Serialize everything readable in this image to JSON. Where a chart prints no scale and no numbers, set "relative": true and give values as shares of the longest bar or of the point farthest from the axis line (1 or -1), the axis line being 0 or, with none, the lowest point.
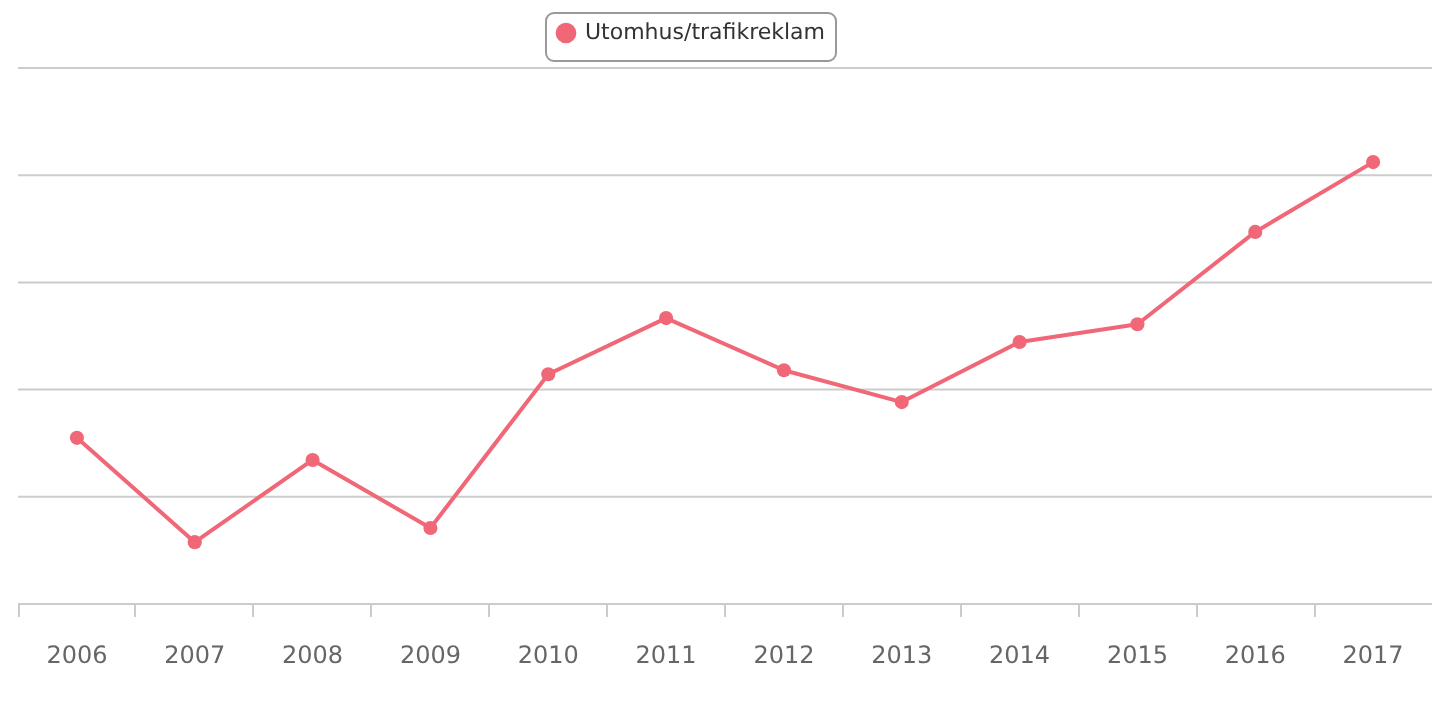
{
  "chart_data": {
    "type": "line",
    "relative": true,
    "categories": [
      "2006",
      "2007",
      "2008",
      "2009",
      "2010",
      "2011",
      "2012",
      "2013",
      "2014",
      "2015",
      "2016",
      "2017"
    ],
    "series": [
      {
        "name": "Utomhus/trafikreklam",
        "color": "#f06878",
        "values": [
          0.376,
          0.14,
          0.326,
          0.172,
          0.52,
          0.647,
          0.529,
          0.457,
          0.593,
          0.633,
          0.842,
          1
        ]
      }
    ],
    "grid": "y",
    "legend": "top",
    "marker": "circle",
    "line_style": "solid"
  }
}
